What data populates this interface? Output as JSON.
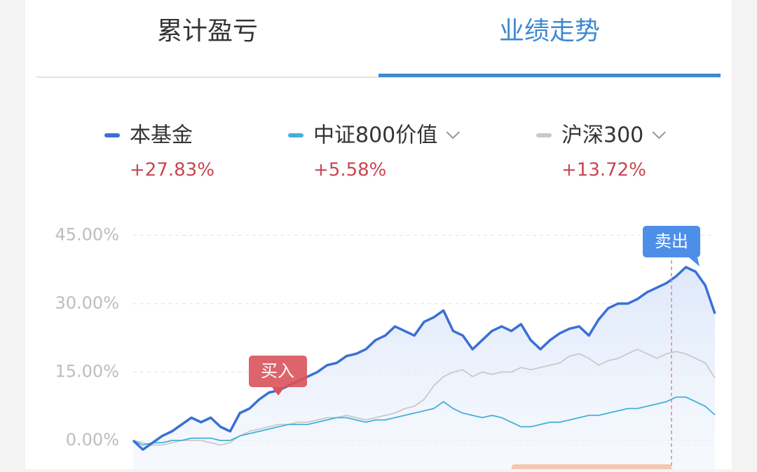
{
  "tabs": [
    "累计盈亏",
    "业绩走势"
  ],
  "chart_data": {
    "type": "line",
    "series": [
      {
        "name": "本基金",
        "color": "#3a6fd6",
        "change": "+27.83%",
        "values": [
          0,
          -2,
          -0.5,
          1,
          2,
          3.5,
          5,
          4,
          5,
          3,
          2,
          6,
          7,
          9,
          10.5,
          11,
          12,
          13,
          14,
          15,
          16.5,
          17,
          18.5,
          19,
          20,
          22,
          23,
          25,
          24,
          23,
          26,
          27,
          28.5,
          24,
          23,
          20,
          22,
          24,
          25,
          24,
          25.5,
          22,
          20,
          22,
          23.5,
          24.5,
          25,
          23,
          26.5,
          29,
          30,
          30,
          31,
          32.5,
          33.5,
          34.5,
          36,
          38,
          37,
          34,
          27.8
        ]
      },
      {
        "name": "中证800价值",
        "color": "#45b0d6",
        "change": "+5.58%",
        "values": [
          0,
          -1,
          -0.5,
          -0.5,
          0,
          0,
          0.5,
          0.5,
          0.5,
          0,
          0,
          1,
          1.5,
          2,
          2.5,
          3,
          3.5,
          3.5,
          3.5,
          4,
          4.5,
          5,
          5,
          4.5,
          4,
          4.5,
          4.5,
          5,
          5.5,
          6,
          6.5,
          7,
          8.5,
          7,
          6,
          5.5,
          5,
          5.5,
          5,
          4,
          3,
          3,
          3.5,
          4,
          4,
          4.5,
          5,
          5.5,
          5.5,
          6,
          6.5,
          7,
          7,
          7.5,
          8,
          8.5,
          9.5,
          9.5,
          8.5,
          7.5,
          5.6
        ]
      },
      {
        "name": "沪深300",
        "color": "#c9c9c9",
        "change": "+13.72%",
        "values": [
          0,
          -0.5,
          -1,
          -1,
          -0.5,
          0,
          0,
          0,
          -0.5,
          -1,
          -0.5,
          1,
          2,
          2.5,
          3,
          3.5,
          3.5,
          4,
          4,
          4.5,
          5,
          5,
          5.5,
          5,
          4.5,
          5,
          5.5,
          6,
          7,
          7.5,
          9,
          12,
          14,
          15,
          15.5,
          14,
          15,
          14.5,
          15,
          15,
          16,
          15.5,
          16,
          16.5,
          17,
          18.5,
          19,
          18,
          16.5,
          17.5,
          18,
          19,
          20,
          19,
          18,
          19,
          19.5,
          19,
          18,
          17,
          13.7
        ]
      }
    ],
    "ylim": [
      -6.3,
      48.9
    ],
    "yticks": [
      {
        "value": 0,
        "label": "0.00%"
      },
      {
        "value": 15,
        "label": "15.00%"
      },
      {
        "value": 30,
        "label": "30.00%"
      },
      {
        "value": 45,
        "label": "45.00%"
      }
    ],
    "grid": true,
    "annotations": [
      "买入",
      "卖出"
    ]
  }
}
